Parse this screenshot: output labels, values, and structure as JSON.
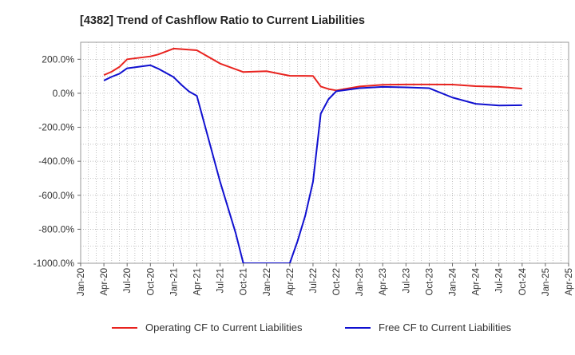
{
  "chart_data": {
    "type": "line",
    "title": "[4382]  Trend of Cashflow Ratio to Current Liabilities",
    "xlabel": "",
    "ylabel": "",
    "ylim": [
      -1000,
      300
    ],
    "xlim": [
      "2020-01",
      "2025-04"
    ],
    "y_ticks": [
      200,
      0,
      -200,
      -400,
      -600,
      -800,
      -1000
    ],
    "y_tick_labels": [
      "200.0%",
      "0.0%",
      "-200.0%",
      "-400.0%",
      "-600.0%",
      "-800.0%",
      "-1000.0%"
    ],
    "x_tick_labels": [
      "Jan-20",
      "Apr-20",
      "Jul-20",
      "Oct-20",
      "Jan-21",
      "Apr-21",
      "Jul-21",
      "Oct-21",
      "Jan-22",
      "Apr-22",
      "Jul-22",
      "Oct-22",
      "Jan-23",
      "Apr-23",
      "Jul-23",
      "Oct-23",
      "Jan-24",
      "Apr-24",
      "Jul-24",
      "Oct-24",
      "Jan-25",
      "Apr-25"
    ],
    "grid": true,
    "legend_position": "bottom",
    "series": [
      {
        "name": "Operating CF to Current Liabilities",
        "color": "#e8231f",
        "points": [
          [
            "2020-04",
            107
          ],
          [
            "2020-05",
            127
          ],
          [
            "2020-06",
            155
          ],
          [
            "2020-07",
            200
          ],
          [
            "2020-10",
            217
          ],
          [
            "2020-11",
            228
          ],
          [
            "2021-01",
            263
          ],
          [
            "2021-04",
            253
          ],
          [
            "2021-07",
            175
          ],
          [
            "2021-10",
            125
          ],
          [
            "2022-01",
            130
          ],
          [
            "2022-04",
            103
          ],
          [
            "2022-07",
            102
          ],
          [
            "2022-08",
            40
          ],
          [
            "2022-09",
            25
          ],
          [
            "2022-10",
            17
          ],
          [
            "2023-01",
            40
          ],
          [
            "2023-04",
            50
          ],
          [
            "2023-07",
            52
          ],
          [
            "2023-10",
            52
          ],
          [
            "2024-01",
            51
          ],
          [
            "2024-04",
            42
          ],
          [
            "2024-07",
            38
          ],
          [
            "2024-10",
            27
          ]
        ]
      },
      {
        "name": "Free CF to Current Liabilities",
        "color": "#1010d0",
        "points": [
          [
            "2020-04",
            75
          ],
          [
            "2020-05",
            97
          ],
          [
            "2020-06",
            115
          ],
          [
            "2020-07",
            147
          ],
          [
            "2020-10",
            165
          ],
          [
            "2020-11",
            145
          ],
          [
            "2021-01",
            95
          ],
          [
            "2021-02",
            50
          ],
          [
            "2021-03",
            10
          ],
          [
            "2021-04",
            -15
          ],
          [
            "2021-07",
            -520
          ],
          [
            "2021-09",
            -820
          ],
          [
            "2021-10",
            -1000
          ],
          [
            "2022-04",
            -1000
          ],
          [
            "2022-05",
            -870
          ],
          [
            "2022-06",
            -720
          ],
          [
            "2022-07",
            -520
          ],
          [
            "2022-08",
            -120
          ],
          [
            "2022-09",
            -35
          ],
          [
            "2022-10",
            12
          ],
          [
            "2023-01",
            30
          ],
          [
            "2023-04",
            38
          ],
          [
            "2023-07",
            35
          ],
          [
            "2023-10",
            30
          ],
          [
            "2024-01",
            -25
          ],
          [
            "2024-04",
            -62
          ],
          [
            "2024-07",
            -72
          ],
          [
            "2024-10",
            -70
          ]
        ]
      }
    ]
  }
}
